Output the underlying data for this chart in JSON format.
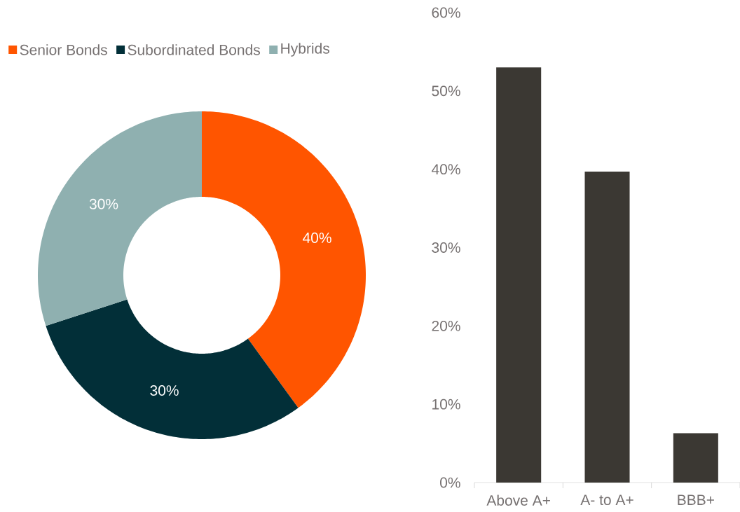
{
  "chart_data": [
    {
      "type": "donut",
      "categories": [
        "Senior Bonds",
        "Subordinated Bonds",
        "Hybrids"
      ],
      "values": [
        40,
        30,
        30
      ],
      "colors": [
        "#ff5500",
        "#022f38",
        "#8fb0b0"
      ],
      "value_labels": [
        "40%",
        "30%",
        "30%"
      ],
      "legend": "top"
    },
    {
      "type": "bar",
      "categories": [
        "Above A+",
        "A- to A+",
        "BBB+"
      ],
      "values": [
        53,
        39.7,
        6.3
      ],
      "color": "#3b3833",
      "ylim": [
        0,
        60
      ],
      "yticks": [
        {
          "value": 0,
          "label": "0%"
        },
        {
          "value": 10,
          "label": "10%"
        },
        {
          "value": 20,
          "label": "20%"
        },
        {
          "value": 30,
          "label": "30%"
        },
        {
          "value": 40,
          "label": "40%"
        },
        {
          "value": 50,
          "label": "50%"
        },
        {
          "value": 60,
          "label": "60%"
        }
      ]
    }
  ]
}
